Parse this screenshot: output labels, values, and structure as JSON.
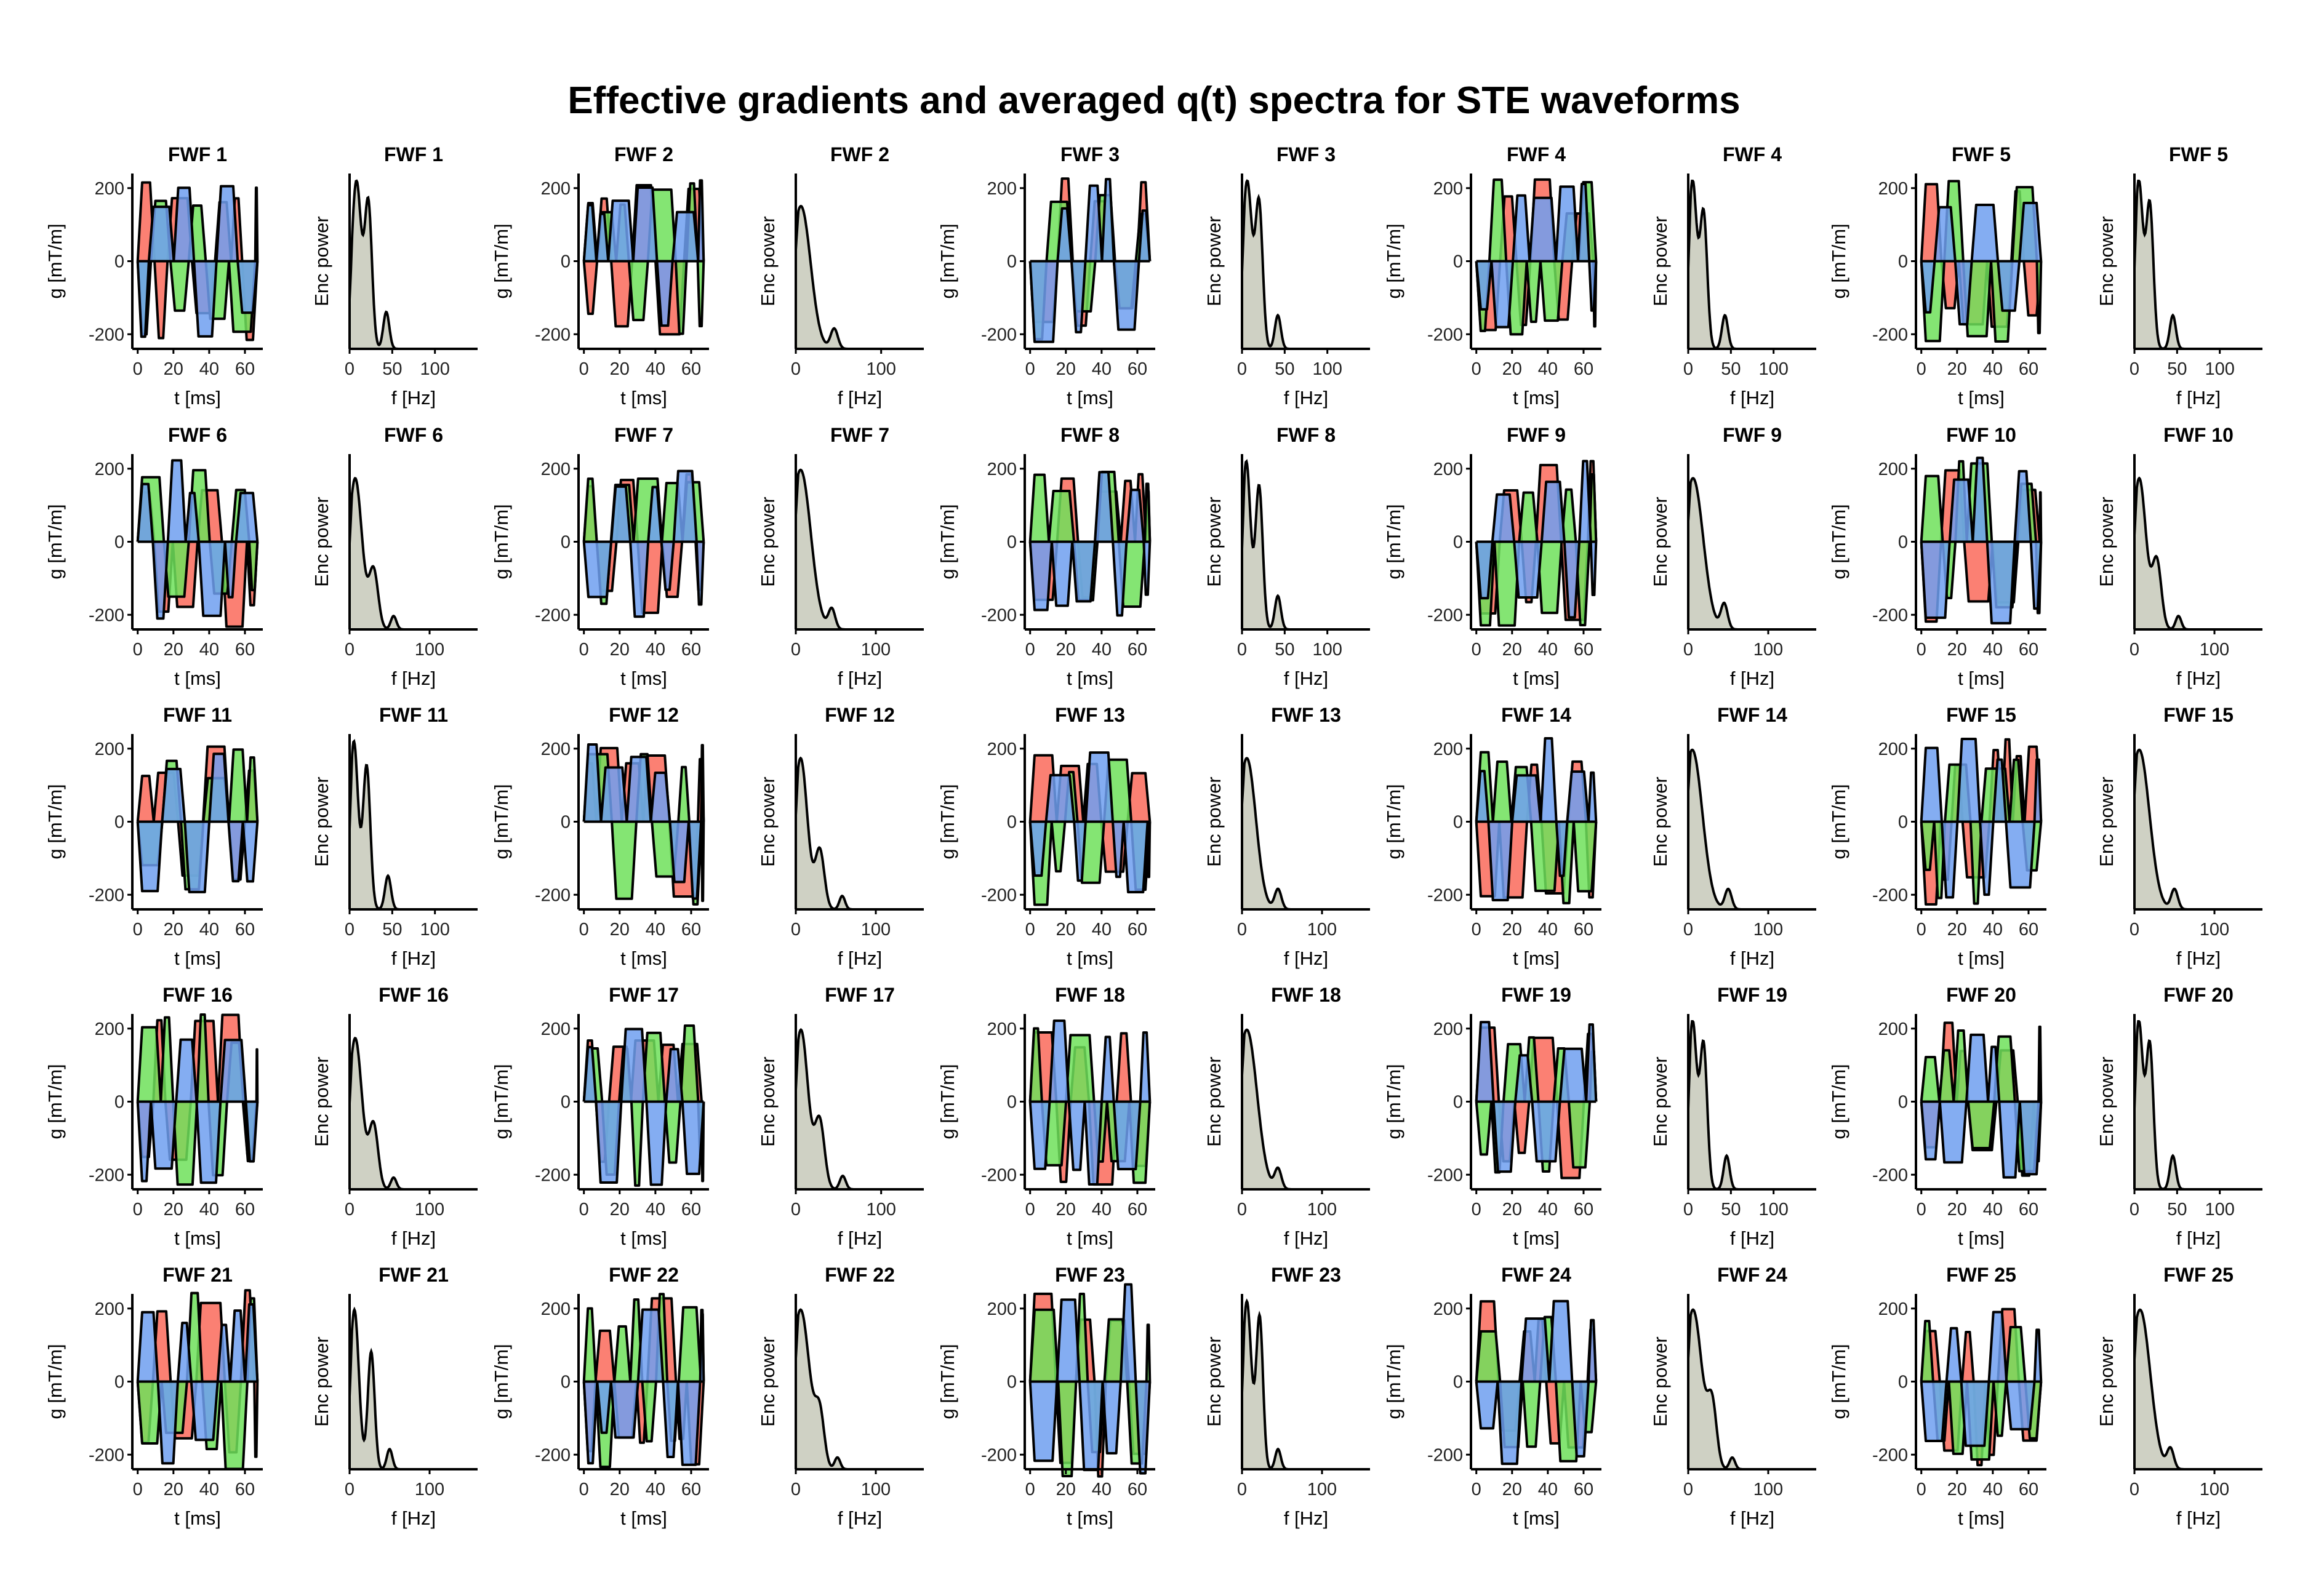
{
  "figure_title": "Effective gradients and averaged q(t) spectra for STE waveforms",
  "colors": {
    "x": "#f8766d",
    "y": "#00ba38",
    "z": "#619cff",
    "x_fill": "#fa6a5a",
    "y_fill": "#6fe05a",
    "z_fill": "#6f9ff0",
    "spectrum_fill": "#cfd1c4",
    "line": "#000000"
  },
  "chart_data": {
    "type": "small-multiples",
    "n_waveforms": 25,
    "layout": {
      "rows": 5,
      "waveforms_per_row": 5
    },
    "gradient_panel": {
      "type": "line-area",
      "xlabel": "t [ms]",
      "ylabel": "g [mT/m]",
      "xticks": [
        0,
        20,
        40,
        60
      ],
      "yticks": [
        -200,
        0,
        200
      ],
      "xlim": [
        -3,
        70
      ],
      "ylim": [
        -240,
        240
      ],
      "series": [
        "g_x",
        "g_y",
        "g_z"
      ]
    },
    "spectrum_panel": {
      "type": "area",
      "xlabel": "f [Hz]",
      "ylabel": "Enc power",
      "xlim": [
        0,
        150
      ]
    },
    "waveforms": [
      {
        "title": "FWF 1",
        "gmax": 220,
        "seed": 1,
        "spec_ticks": [
          0,
          50,
          100
        ],
        "spec_xmax": 150,
        "peaks": [
          [
            8,
            1.0,
            8
          ],
          [
            22,
            0.85,
            6
          ],
          [
            43,
            0.22,
            5
          ]
        ]
      },
      {
        "title": "FWF 2",
        "gmax": 230,
        "seed": 2,
        "spec_ticks": [
          0,
          100
        ],
        "spec_xmax": 150,
        "peaks": [
          [
            6,
            0.85,
            16
          ],
          [
            45,
            0.12,
            6
          ]
        ]
      },
      {
        "title": "FWF 3",
        "gmax": 230,
        "seed": 3,
        "spec_ticks": [
          0,
          50,
          100
        ],
        "spec_xmax": 150,
        "peaks": [
          [
            6,
            1.0,
            8
          ],
          [
            20,
            0.85,
            6
          ],
          [
            42,
            0.2,
            5
          ]
        ]
      },
      {
        "title": "FWF 4",
        "gmax": 230,
        "seed": 4,
        "spec_ticks": [
          0,
          50,
          100
        ],
        "spec_xmax": 150,
        "peaks": [
          [
            5,
            1.0,
            7
          ],
          [
            18,
            0.8,
            6
          ],
          [
            43,
            0.2,
            5
          ]
        ]
      },
      {
        "title": "FWF 5",
        "gmax": 230,
        "seed": 5,
        "spec_ticks": [
          0,
          50,
          100
        ],
        "spec_xmax": 150,
        "peaks": [
          [
            5,
            1.0,
            7
          ],
          [
            18,
            0.85,
            6
          ],
          [
            45,
            0.2,
            5
          ]
        ]
      },
      {
        "title": "FWF 6",
        "gmax": 240,
        "seed": 6,
        "spec_ticks": [
          0,
          100
        ],
        "spec_xmax": 160,
        "peaks": [
          [
            7,
            0.9,
            12
          ],
          [
            30,
            0.35,
            8
          ],
          [
            55,
            0.08,
            5
          ]
        ]
      },
      {
        "title": "FWF 7",
        "gmax": 230,
        "seed": 7,
        "spec_ticks": [
          0,
          100
        ],
        "spec_xmax": 160,
        "peaks": [
          [
            6,
            0.95,
            18
          ],
          [
            45,
            0.12,
            6
          ]
        ]
      },
      {
        "title": "FWF 8",
        "gmax": 210,
        "seed": 8,
        "spec_ticks": [
          0,
          50,
          100
        ],
        "spec_xmax": 150,
        "peaks": [
          [
            5,
            1.0,
            7
          ],
          [
            20,
            0.85,
            6
          ],
          [
            42,
            0.2,
            5
          ]
        ]
      },
      {
        "title": "FWF 9",
        "gmax": 230,
        "seed": 9,
        "spec_ticks": [
          0,
          100
        ],
        "spec_xmax": 160,
        "peaks": [
          [
            6,
            0.9,
            18
          ],
          [
            45,
            0.15,
            6
          ]
        ]
      },
      {
        "title": "FWF 10",
        "gmax": 230,
        "seed": 10,
        "spec_ticks": [
          0,
          100
        ],
        "spec_xmax": 160,
        "peaks": [
          [
            6,
            0.9,
            12
          ],
          [
            28,
            0.4,
            8
          ],
          [
            55,
            0.08,
            5
          ]
        ]
      },
      {
        "title": "FWF 11",
        "gmax": 210,
        "seed": 11,
        "spec_ticks": [
          0,
          50,
          100
        ],
        "spec_xmax": 150,
        "peaks": [
          [
            5,
            1.0,
            7
          ],
          [
            20,
            0.85,
            6
          ],
          [
            45,
            0.2,
            5
          ]
        ]
      },
      {
        "title": "FWF 12",
        "gmax": 230,
        "seed": 12,
        "spec_ticks": [
          0,
          100
        ],
        "spec_xmax": 160,
        "peaks": [
          [
            6,
            0.9,
            12
          ],
          [
            30,
            0.35,
            8
          ],
          [
            58,
            0.08,
            5
          ]
        ]
      },
      {
        "title": "FWF 13",
        "gmax": 230,
        "seed": 13,
        "spec_ticks": [
          0,
          100
        ],
        "spec_xmax": 160,
        "peaks": [
          [
            6,
            0.9,
            16
          ],
          [
            45,
            0.12,
            6
          ]
        ]
      },
      {
        "title": "FWF 14",
        "gmax": 230,
        "seed": 14,
        "spec_ticks": [
          0,
          100
        ],
        "spec_xmax": 160,
        "peaks": [
          [
            5,
            0.95,
            18
          ],
          [
            50,
            0.12,
            6
          ]
        ]
      },
      {
        "title": "FWF 15",
        "gmax": 230,
        "seed": 15,
        "spec_ticks": [
          0,
          100
        ],
        "spec_xmax": 160,
        "peaks": [
          [
            6,
            0.95,
            18
          ],
          [
            50,
            0.12,
            6
          ]
        ]
      },
      {
        "title": "FWF 16",
        "gmax": 240,
        "seed": 16,
        "spec_ticks": [
          0,
          100
        ],
        "spec_xmax": 160,
        "peaks": [
          [
            7,
            0.9,
            12
          ],
          [
            30,
            0.38,
            8
          ],
          [
            55,
            0.07,
            5
          ]
        ]
      },
      {
        "title": "FWF 17",
        "gmax": 230,
        "seed": 17,
        "spec_ticks": [
          0,
          100
        ],
        "spec_xmax": 150,
        "peaks": [
          [
            6,
            0.95,
            12
          ],
          [
            28,
            0.4,
            8
          ],
          [
            55,
            0.08,
            5
          ]
        ]
      },
      {
        "title": "FWF 18",
        "gmax": 230,
        "seed": 18,
        "spec_ticks": [
          0,
          100
        ],
        "spec_xmax": 160,
        "peaks": [
          [
            6,
            0.95,
            18
          ],
          [
            45,
            0.12,
            6
          ]
        ]
      },
      {
        "title": "FWF 19",
        "gmax": 220,
        "seed": 19,
        "spec_ticks": [
          0,
          50,
          100
        ],
        "spec_xmax": 150,
        "peaks": [
          [
            5,
            1.0,
            7
          ],
          [
            18,
            0.85,
            6
          ],
          [
            45,
            0.2,
            5
          ]
        ]
      },
      {
        "title": "FWF 20",
        "gmax": 220,
        "seed": 20,
        "spec_ticks": [
          0,
          50,
          100
        ],
        "spec_xmax": 150,
        "peaks": [
          [
            5,
            1.0,
            7
          ],
          [
            18,
            0.85,
            6
          ],
          [
            45,
            0.2,
            5
          ]
        ]
      },
      {
        "title": "FWF 21",
        "gmax": 250,
        "seed": 21,
        "spec_ticks": [
          0,
          100
        ],
        "spec_xmax": 160,
        "peaks": [
          [
            6,
            0.95,
            8
          ],
          [
            27,
            0.7,
            6
          ],
          [
            50,
            0.12,
            5
          ]
        ]
      },
      {
        "title": "FWF 22",
        "gmax": 250,
        "seed": 22,
        "spec_ticks": [
          0,
          100
        ],
        "spec_xmax": 160,
        "peaks": [
          [
            6,
            0.95,
            16
          ],
          [
            30,
            0.3,
            8
          ],
          [
            52,
            0.07,
            5
          ]
        ]
      },
      {
        "title": "FWF 23",
        "gmax": 280,
        "seed": 23,
        "spec_ticks": [
          0,
          100
        ],
        "spec_xmax": 160,
        "peaks": [
          [
            6,
            1.0,
            8
          ],
          [
            22,
            0.9,
            6
          ],
          [
            45,
            0.12,
            5
          ]
        ]
      },
      {
        "title": "FWF 24",
        "gmax": 230,
        "seed": 24,
        "spec_ticks": [
          0,
          100
        ],
        "spec_xmax": 160,
        "peaks": [
          [
            6,
            0.95,
            16
          ],
          [
            30,
            0.35,
            8
          ],
          [
            55,
            0.07,
            5
          ]
        ]
      },
      {
        "title": "FWF 25",
        "gmax": 230,
        "seed": 25,
        "spec_ticks": [
          0,
          100
        ],
        "spec_xmax": 160,
        "peaks": [
          [
            7,
            0.95,
            18
          ],
          [
            45,
            0.12,
            6
          ]
        ]
      }
    ]
  }
}
